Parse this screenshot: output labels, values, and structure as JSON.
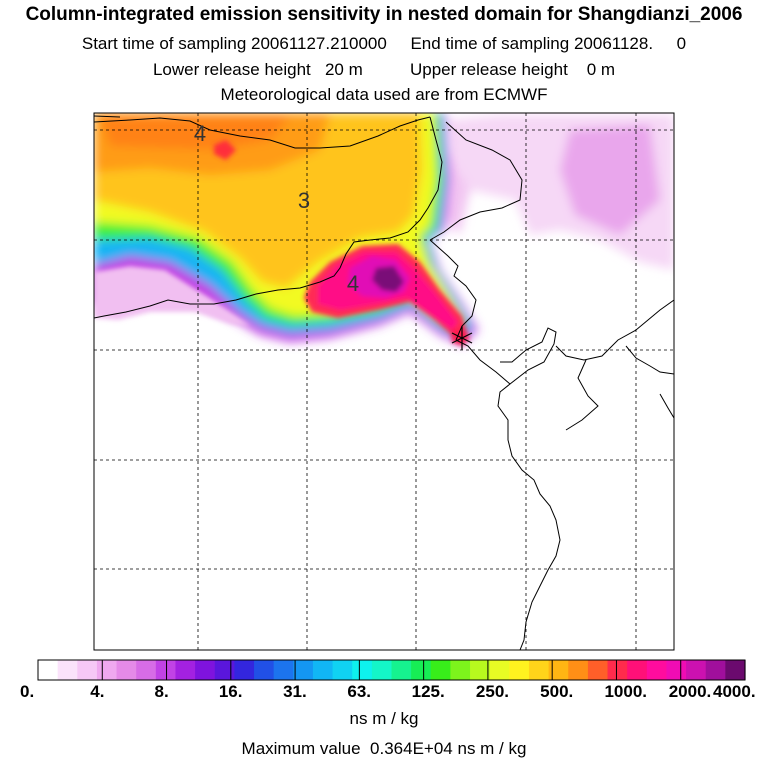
{
  "header": {
    "title": "Column-integrated emission sensitivity in nested domain for Shangdianzi_2006",
    "start_label": "Start time of sampling",
    "start_value": "20061127.210000",
    "end_label": "End time of sampling",
    "end_value": "20061128.     0",
    "lower_label": "Lower release height",
    "lower_value": "20 m",
    "upper_label": "Upper release height",
    "upper_value": "0 m",
    "met_line": "Meteorological data used are from ECMWF"
  },
  "map": {
    "contour_labels": [
      "4",
      "3",
      "4"
    ],
    "site_marker": "Shangdianzi"
  },
  "colorbar": {
    "colors": [
      "#ffffff",
      "#fbe3fb",
      "#f6c8f6",
      "#efa8ef",
      "#e58ae8",
      "#d76ce6",
      "#c142e6",
      "#a321e1",
      "#7f13de",
      "#5a16dc",
      "#3326de",
      "#2150e6",
      "#1c74ee",
      "#1496f3",
      "#11b6f5",
      "#10d2f3",
      "#0ef2ee",
      "#14f6c8",
      "#16f28f",
      "#17ee55",
      "#38ee1a",
      "#7df41c",
      "#b7fa1e",
      "#e8fc24",
      "#fff21f",
      "#ffd41a",
      "#ffb513",
      "#ff8f16",
      "#ff5f29",
      "#ff2b4c",
      "#ff1078",
      "#ff0c9e",
      "#f00cb4",
      "#cc11b0",
      "#a00f9c",
      "#6b0a6e"
    ],
    "tick_labels": [
      "0.",
      "4.",
      "8.",
      "16.",
      "31.",
      "63.",
      "125.",
      "250.",
      "500.",
      "1000.",
      "2000.",
      "4000."
    ],
    "units": "ns m / kg"
  },
  "footer": {
    "max_label": "Maximum value",
    "max_value": "0.364E+04",
    "max_units": "ns m / kg"
  }
}
